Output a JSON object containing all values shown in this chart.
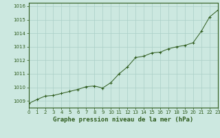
{
  "x": [
    0,
    1,
    2,
    3,
    4,
    5,
    6,
    7,
    8,
    9,
    10,
    11,
    12,
    13,
    14,
    15,
    16,
    17,
    18,
    19,
    20,
    21,
    22,
    23
  ],
  "y": [
    1008.8,
    1009.1,
    1009.35,
    1009.4,
    1009.55,
    1009.7,
    1009.85,
    1010.05,
    1010.1,
    1009.95,
    1010.35,
    1011.0,
    1011.5,
    1012.2,
    1012.3,
    1012.55,
    1012.6,
    1012.85,
    1013.0,
    1013.1,
    1013.3,
    1014.15,
    1015.2,
    1015.7
  ],
  "xlim": [
    0,
    23
  ],
  "ylim": [
    1008.5,
    1016.25
  ],
  "yticks": [
    1009,
    1010,
    1011,
    1012,
    1013,
    1014,
    1015,
    1016
  ],
  "xticks": [
    0,
    1,
    2,
    3,
    4,
    5,
    6,
    7,
    8,
    9,
    10,
    11,
    12,
    13,
    14,
    15,
    16,
    17,
    18,
    19,
    20,
    21,
    22,
    23
  ],
  "xlabel": "Graphe pression niveau de la mer (hPa)",
  "line_color": "#2d5a1b",
  "marker_color": "#2d5a1b",
  "bg_color": "#cce8e0",
  "grid_color": "#aacfc7",
  "axis_color": "#2d5a1b",
  "tick_label_color": "#2d5a1b",
  "xlabel_color": "#2d5a1b"
}
